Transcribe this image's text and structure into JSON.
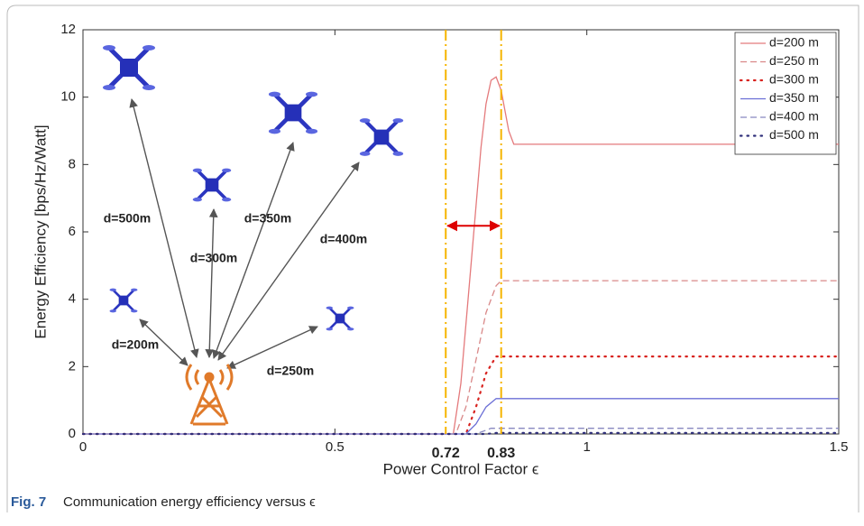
{
  "chart_data": {
    "type": "line",
    "x_label": "Power Control Factor ϵ",
    "y_label": "Energy Efficiency [bps/Hz/Watt]",
    "caption_label": "Fig. 7",
    "caption": "Communication energy efficiency versus ϵ",
    "xlim": [
      0,
      1.5
    ],
    "ylim": [
      0,
      12
    ],
    "xticks": [
      0,
      0.5,
      1,
      1.5
    ],
    "yticks": [
      0,
      2,
      4,
      6,
      8,
      10,
      12
    ],
    "vlines": [
      0.72,
      0.83
    ],
    "vline_color": "#f5b400",
    "annotations": [
      "d=500m",
      "d=300m",
      "d=350m",
      "d=400m",
      "d=200m",
      "d=250m"
    ],
    "legend": "upper right",
    "series": [
      {
        "name": "d=200 m",
        "color": "#e47a7c",
        "dash": "solid",
        "x": [
          0,
          0.735,
          0.75,
          0.77,
          0.79,
          0.8,
          0.81,
          0.82,
          0.83,
          0.845,
          0.855,
          1.5
        ],
        "values": [
          0,
          0,
          1.5,
          5,
          8.5,
          9.8,
          10.5,
          10.6,
          10.2,
          9,
          8.6,
          8.6
        ]
      },
      {
        "name": "d=250 m",
        "color": "#d98888",
        "dash": "dashed",
        "x": [
          0,
          0.74,
          0.76,
          0.78,
          0.8,
          0.82,
          0.83,
          1.5
        ],
        "values": [
          0,
          0,
          0.8,
          2.2,
          3.6,
          4.4,
          4.55,
          4.55
        ]
      },
      {
        "name": "d=300 m",
        "color": "#d8231f",
        "dash": "dotted",
        "x": [
          0,
          0.76,
          0.78,
          0.8,
          0.82,
          1.5
        ],
        "values": [
          0,
          0,
          0.8,
          1.8,
          2.3,
          2.3
        ]
      },
      {
        "name": "d=350 m",
        "color": "#6b6fd6",
        "dash": "solid",
        "x": [
          0,
          0.76,
          0.78,
          0.8,
          0.82,
          1.5
        ],
        "values": [
          0,
          0,
          0.3,
          0.8,
          1.05,
          1.05
        ]
      },
      {
        "name": "d=400 m",
        "color": "#8888c0",
        "dash": "dashed",
        "x": [
          0,
          0.78,
          0.81,
          1.5
        ],
        "values": [
          0,
          0,
          0.17,
          0.17
        ]
      },
      {
        "name": "d=500 m",
        "color": "#2f2f7a",
        "dash": "dotted",
        "x": [
          0,
          0.8,
          0.82,
          1.5
        ],
        "values": [
          0,
          0,
          0.03,
          0.03
        ]
      }
    ]
  }
}
